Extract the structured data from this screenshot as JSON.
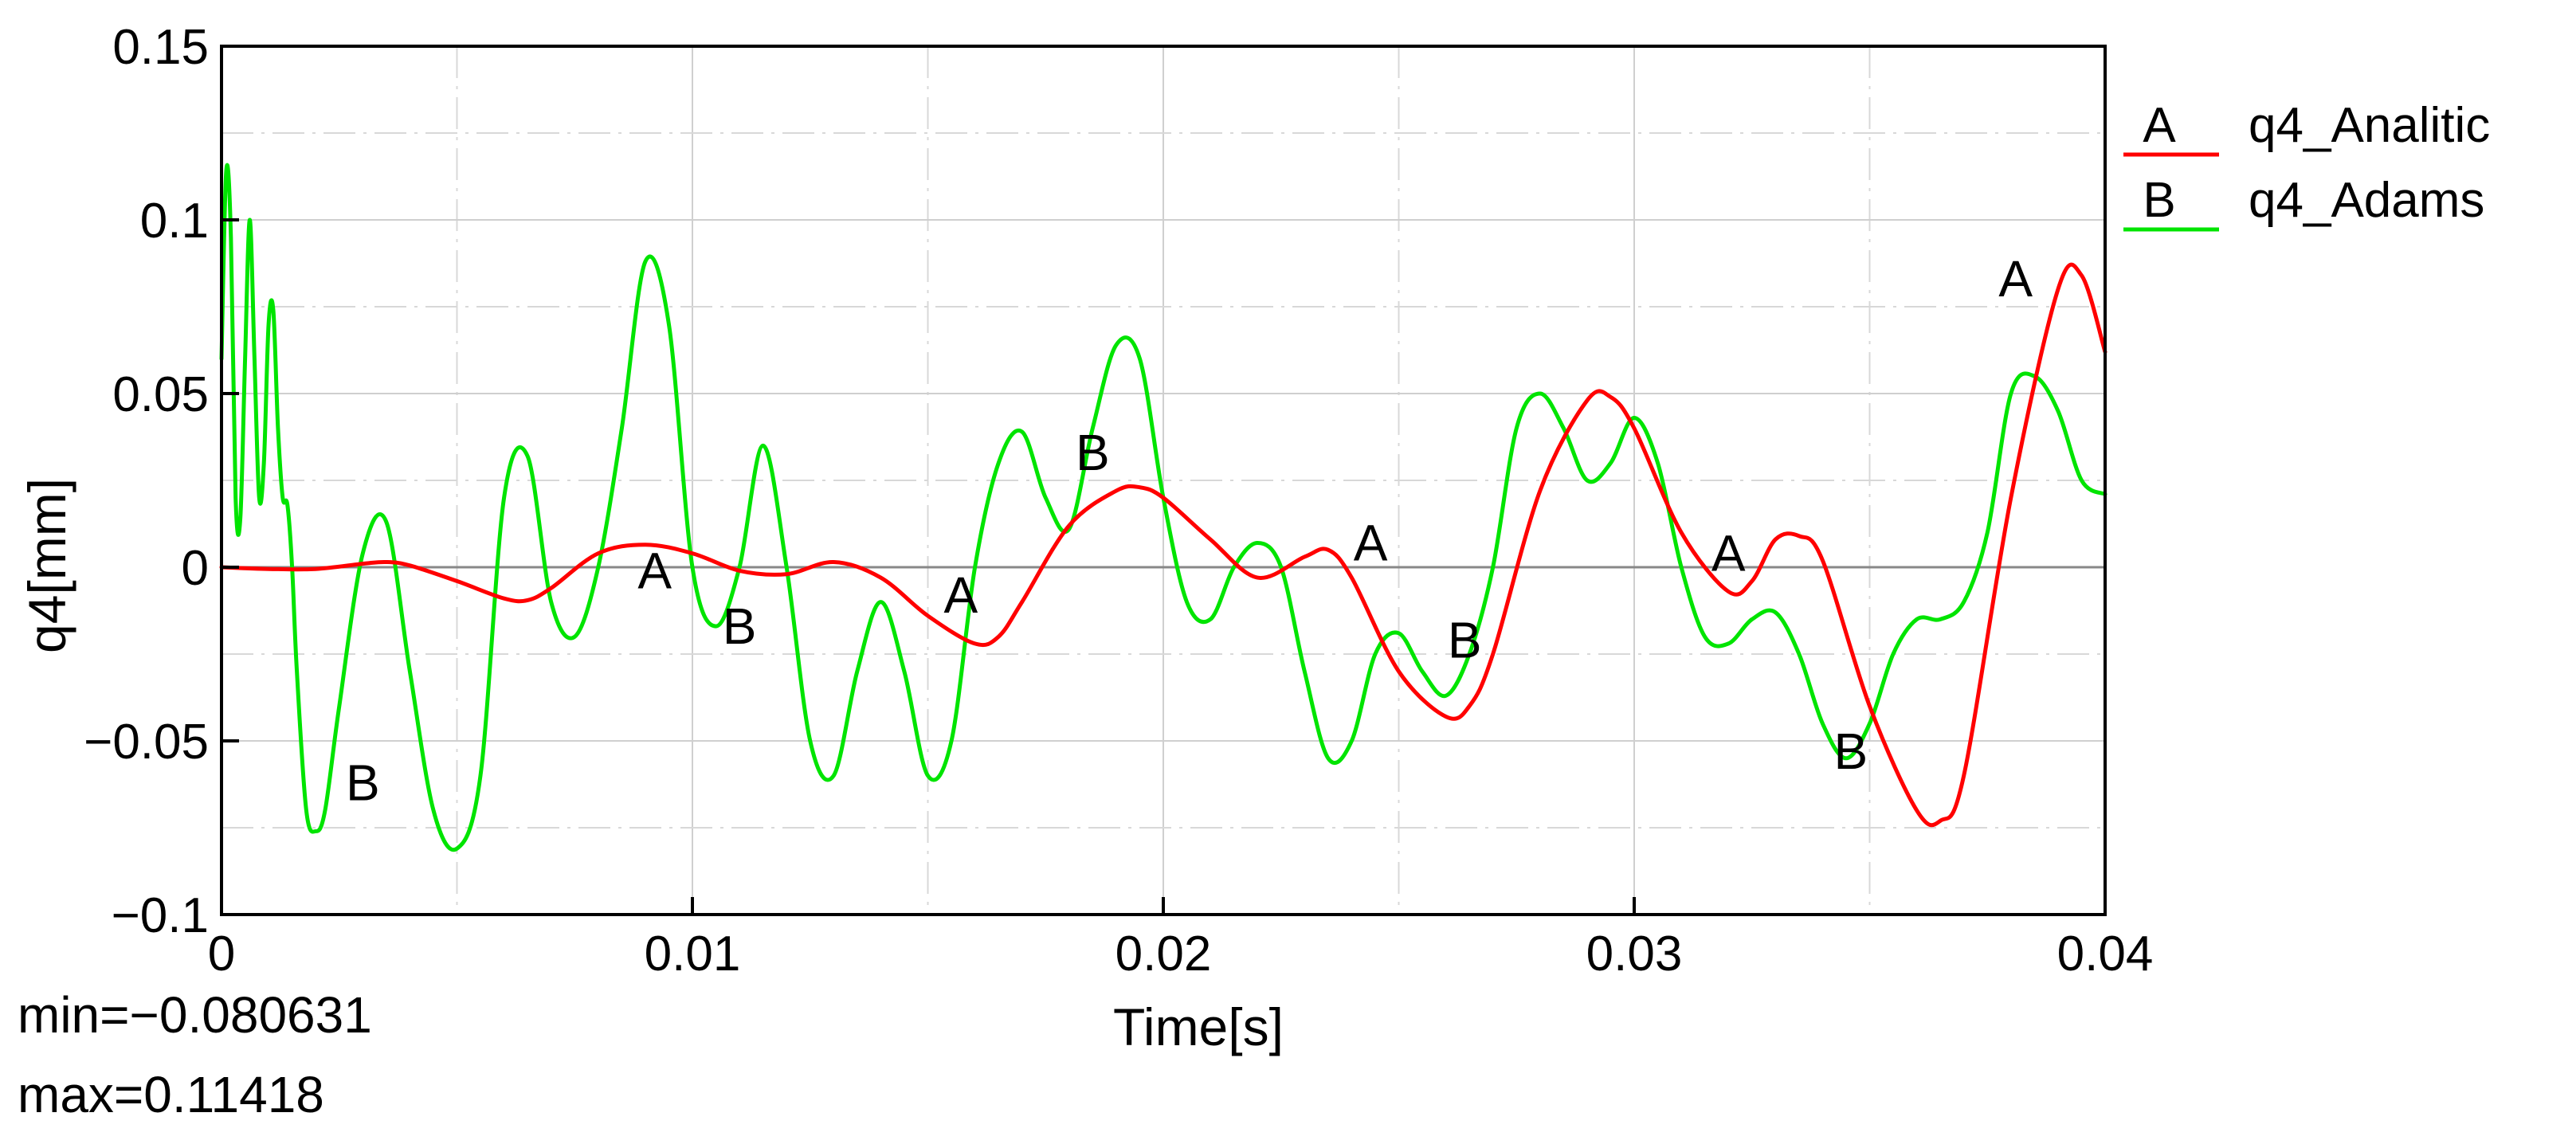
{
  "chart_data": {
    "type": "line",
    "xlabel": "Time[s]",
    "ylabel": "q4[mm]",
    "xlim": [
      0,
      0.04
    ],
    "ylim": [
      -0.1,
      0.15
    ],
    "x_ticks": [
      0,
      0.01,
      0.02,
      0.03,
      0.04
    ],
    "x_tick_labels": [
      "0",
      "0.01",
      "0.02",
      "0.03",
      "0.04"
    ],
    "y_ticks": [
      -0.1,
      -0.05,
      0,
      0.05,
      0.1,
      0.15
    ],
    "y_tick_labels": [
      "−0.1",
      "−0.05",
      "0",
      "0.05",
      "0.1",
      "0.15"
    ],
    "grid": true,
    "legend_position": "right",
    "stats": {
      "min": "min=−0.080631",
      "max": "max=0.11418"
    },
    "series": [
      {
        "name": "q4_Analitic",
        "marker": "A",
        "color": "#ff0000",
        "x": [
          0,
          0.001,
          0.002,
          0.003,
          0.0035,
          0.004,
          0.005,
          0.006,
          0.0065,
          0.007,
          0.008,
          0.009,
          0.01,
          0.011,
          0.012,
          0.013,
          0.014,
          0.015,
          0.016,
          0.0165,
          0.017,
          0.018,
          0.019,
          0.0195,
          0.02,
          0.021,
          0.022,
          0.023,
          0.0235,
          0.024,
          0.025,
          0.026,
          0.0265,
          0.027,
          0.028,
          0.029,
          0.0295,
          0.03,
          0.031,
          0.032,
          0.0325,
          0.033,
          0.0335,
          0.034,
          0.035,
          0.036,
          0.0365,
          0.037,
          0.038,
          0.039,
          0.0395,
          0.04
        ],
        "values": [
          0,
          -0.0005,
          -0.0005,
          0.001,
          0.0015,
          0.0005,
          -0.004,
          -0.009,
          -0.0095,
          -0.006,
          0.004,
          0.0065,
          0.004,
          -0.001,
          -0.002,
          0.0015,
          -0.003,
          -0.014,
          -0.022,
          -0.02,
          -0.01,
          0.012,
          0.022,
          0.023,
          0.02,
          0.008,
          -0.003,
          0.003,
          0.005,
          -0.003,
          -0.03,
          -0.043,
          -0.04,
          -0.025,
          0.022,
          0.048,
          0.049,
          0.04,
          0.01,
          -0.007,
          -0.004,
          0.008,
          0.009,
          0.002,
          -0.04,
          -0.07,
          -0.073,
          -0.06,
          0.02,
          0.08,
          0.084,
          0.062
        ]
      },
      {
        "name": "q4_Adams",
        "marker": "B",
        "color": "#00e400",
        "x": [
          0,
          0.0001,
          0.0002,
          0.0003,
          0.0004,
          0.0005,
          0.0006,
          0.0007,
          0.0008,
          0.0009,
          0.001,
          0.0011,
          0.0012,
          0.0013,
          0.0014,
          0.0015,
          0.0016,
          0.0018,
          0.002,
          0.0022,
          0.0025,
          0.003,
          0.0035,
          0.004,
          0.0045,
          0.005,
          0.0055,
          0.006,
          0.0065,
          0.007,
          0.0075,
          0.008,
          0.0085,
          0.009,
          0.0095,
          0.01,
          0.0105,
          0.011,
          0.0115,
          0.012,
          0.0125,
          0.013,
          0.0135,
          0.014,
          0.0145,
          0.015,
          0.0155,
          0.016,
          0.0165,
          0.017,
          0.0175,
          0.018,
          0.0185,
          0.019,
          0.0195,
          0.02,
          0.0205,
          0.021,
          0.0215,
          0.022,
          0.0225,
          0.023,
          0.0235,
          0.024,
          0.0245,
          0.025,
          0.0255,
          0.026,
          0.0265,
          0.027,
          0.0275,
          0.028,
          0.0285,
          0.029,
          0.0295,
          0.03,
          0.0305,
          0.031,
          0.0315,
          0.032,
          0.0325,
          0.033,
          0.0335,
          0.034,
          0.0345,
          0.035,
          0.0355,
          0.036,
          0.0365,
          0.037,
          0.0375,
          0.038,
          0.0385,
          0.039,
          0.0395,
          0.04
        ],
        "values": [
          0.06,
          0.114,
          0.095,
          0.02,
          0.014,
          0.06,
          0.1,
          0.06,
          0.02,
          0.03,
          0.07,
          0.074,
          0.04,
          0.02,
          0.018,
          0.0,
          -0.03,
          -0.07,
          -0.076,
          -0.07,
          -0.04,
          0.004,
          0.013,
          -0.03,
          -0.07,
          -0.081,
          -0.06,
          0.02,
          0.032,
          -0.01,
          -0.02,
          0.0,
          0.04,
          0.088,
          0.07,
          0.0,
          -0.017,
          0.0,
          0.035,
          0.0,
          -0.05,
          -0.06,
          -0.03,
          -0.01,
          -0.03,
          -0.06,
          -0.05,
          0.0,
          0.03,
          0.039,
          0.02,
          0.011,
          0.04,
          0.064,
          0.06,
          0.02,
          -0.01,
          -0.015,
          0.0,
          0.007,
          0.0,
          -0.03,
          -0.055,
          -0.05,
          -0.025,
          -0.019,
          -0.03,
          -0.037,
          -0.025,
          0.0,
          0.04,
          0.05,
          0.04,
          0.025,
          0.03,
          0.043,
          0.03,
          0.0,
          -0.02,
          -0.022,
          -0.015,
          -0.013,
          -0.025,
          -0.045,
          -0.055,
          -0.045,
          -0.025,
          -0.015,
          -0.015,
          -0.01,
          0.01,
          0.05,
          0.055,
          0.045,
          0.025,
          0.021
        ]
      }
    ],
    "series_markers": [
      {
        "series": "q4_Analitic",
        "text": "A",
        "x": 0.0092,
        "y": -0.001
      },
      {
        "series": "q4_Analitic",
        "text": "A",
        "x": 0.0157,
        "y": -0.008
      },
      {
        "series": "q4_Analitic",
        "text": "A",
        "x": 0.0244,
        "y": 0.007
      },
      {
        "series": "q4_Analitic",
        "text": "A",
        "x": 0.032,
        "y": 0.004
      },
      {
        "series": "q4_Analitic",
        "text": "A",
        "x": 0.0381,
        "y": 0.083
      },
      {
        "series": "q4_Adams",
        "text": "B",
        "x": 0.003,
        "y": -0.062
      },
      {
        "series": "q4_Adams",
        "text": "B",
        "x": 0.011,
        "y": -0.017
      },
      {
        "series": "q4_Adams",
        "text": "B",
        "x": 0.0185,
        "y": 0.033
      },
      {
        "series": "q4_Adams",
        "text": "B",
        "x": 0.0264,
        "y": -0.021
      },
      {
        "series": "q4_Adams",
        "text": "B",
        "x": 0.0346,
        "y": -0.053
      }
    ]
  }
}
